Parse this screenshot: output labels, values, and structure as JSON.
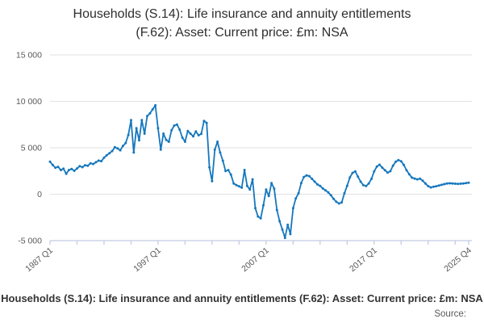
{
  "title": {
    "line1": "Households (S.14): Life insurance and annuity entitlements",
    "line2": "(F.62): Asset: Current price: £m: NSA"
  },
  "footer": {
    "caption": "Households (S.14): Life insurance and annuity entitlements (F.62): Asset: Current price: £m: NSA",
    "source_label": "Source:"
  },
  "colors": {
    "line": "#1577bd",
    "grid": "#e2e2e2",
    "axis": "#c3cce4",
    "tick_label": "#595959"
  },
  "chart_data": {
    "type": "line",
    "title": "Households (S.14): Life insurance and annuity entitlements (F.62): Asset: Current price: £m: NSA",
    "xlabel": "",
    "ylabel": "",
    "ylim": [
      -5000,
      15000
    ],
    "grid": "horizontal",
    "legend_position": "none",
    "marker": "circle",
    "frequency": "quarterly",
    "x_start": "1987 Q1",
    "x_end": "2025 Q4",
    "x_tick_labels": [
      "1987 Q1",
      "1997 Q1",
      "2007 Q1",
      "2017 Q1",
      "2025 Q4"
    ],
    "x_tick_label_positions": [
      0,
      40,
      80,
      120,
      155
    ],
    "x_minor_tick_step": 10,
    "y_tick_labels": [
      "15 000",
      "10 000",
      "5 000",
      "0",
      "-5 000"
    ],
    "y_tick_values": [
      15000,
      10000,
      5000,
      0,
      -5000
    ],
    "series": [
      {
        "name": "Households (S.14): Life insurance and annuity entitlements (F.62): Asset: Current price: £m: NSA",
        "values": [
          3500,
          3150,
          2850,
          2950,
          2600,
          2750,
          2200,
          2600,
          2720,
          2520,
          2770,
          3020,
          2910,
          3120,
          3060,
          3330,
          3250,
          3440,
          3620,
          3560,
          3930,
          4190,
          4420,
          4640,
          5060,
          4930,
          4730,
          5200,
          5510,
          6380,
          7970,
          4490,
          7100,
          5800,
          7970,
          6520,
          8410,
          8700,
          9130,
          9570,
          7100,
          4800,
          6520,
          5850,
          5650,
          6900,
          7390,
          7500,
          6960,
          6090,
          5650,
          6810,
          6520,
          6230,
          6760,
          6350,
          6500,
          7900,
          7680,
          2900,
          1400,
          4800,
          5650,
          4490,
          3600,
          2500,
          2600,
          2100,
          1150,
          980,
          850,
          700,
          2610,
          900,
          500,
          1600,
          -1500,
          -2400,
          -2600,
          -1200,
          500,
          -200,
          1200,
          600,
          -1700,
          -2900,
          -3800,
          -4700,
          -3300,
          -4300,
          -1500,
          -450,
          100,
          1200,
          1850,
          2030,
          1950,
          1650,
          1350,
          1050,
          900,
          620,
          420,
          200,
          -100,
          -500,
          -820,
          -1000,
          -890,
          100,
          900,
          1800,
          2300,
          2450,
          1900,
          1350,
          980,
          880,
          1150,
          1650,
          2450,
          2980,
          3170,
          2860,
          2590,
          2330,
          2480,
          3080,
          3500,
          3670,
          3550,
          3150,
          2570,
          2150,
          1780,
          1690,
          1600,
          1670,
          1440,
          1150,
          870,
          730,
          800,
          860,
          930,
          1010,
          1090,
          1150,
          1170,
          1160,
          1130,
          1110,
          1130,
          1160,
          1190,
          1240
        ]
      }
    ]
  }
}
